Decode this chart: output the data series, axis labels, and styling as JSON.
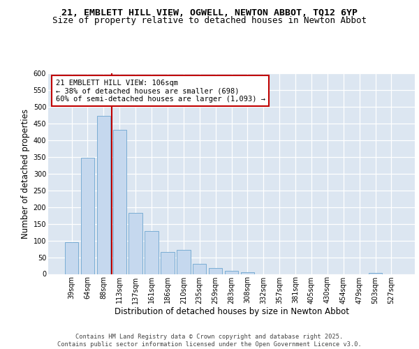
{
  "title1": "21, EMBLETT HILL VIEW, OGWELL, NEWTON ABBOT, TQ12 6YP",
  "title2": "Size of property relative to detached houses in Newton Abbot",
  "xlabel": "Distribution of detached houses by size in Newton Abbot",
  "ylabel": "Number of detached properties",
  "categories": [
    "39sqm",
    "64sqm",
    "88sqm",
    "113sqm",
    "137sqm",
    "161sqm",
    "186sqm",
    "210sqm",
    "235sqm",
    "259sqm",
    "283sqm",
    "308sqm",
    "332sqm",
    "357sqm",
    "381sqm",
    "405sqm",
    "430sqm",
    "454sqm",
    "479sqm",
    "503sqm",
    "527sqm"
  ],
  "values": [
    95,
    348,
    472,
    430,
    183,
    128,
    65,
    73,
    30,
    18,
    10,
    5,
    0,
    0,
    0,
    0,
    0,
    0,
    0,
    3,
    0
  ],
  "bar_color": "#c5d8ee",
  "bar_edge_color": "#7aadd4",
  "vline_x_index": 2.5,
  "vline_color": "#c00000",
  "annotation_text": "21 EMBLETT HILL VIEW: 106sqm\n← 38% of detached houses are smaller (698)\n60% of semi-detached houses are larger (1,093) →",
  "annotation_box_color": "#ffffff",
  "annotation_box_edge": "#c00000",
  "ylim": [
    0,
    600
  ],
  "yticks": [
    0,
    50,
    100,
    150,
    200,
    250,
    300,
    350,
    400,
    450,
    500,
    550,
    600
  ],
  "bg_color": "#dce6f1",
  "footer": "Contains HM Land Registry data © Crown copyright and database right 2025.\nContains public sector information licensed under the Open Government Licence v3.0.",
  "title_fontsize": 9.5,
  "subtitle_fontsize": 9,
  "axis_label_fontsize": 8.5,
  "tick_fontsize": 7,
  "annotation_fontsize": 7.5,
  "footer_fontsize": 6.2
}
